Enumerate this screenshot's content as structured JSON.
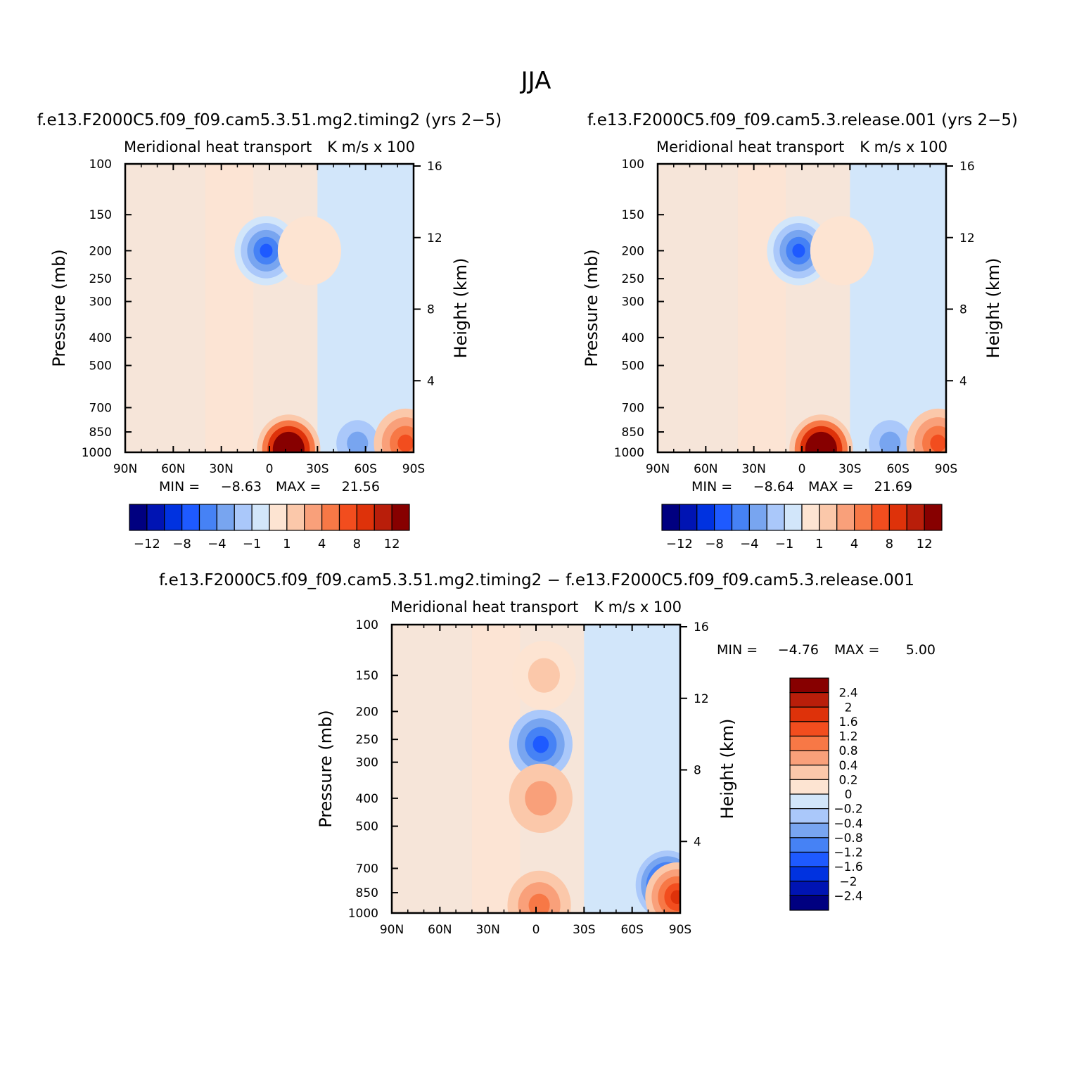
{
  "figure_title": "JJA",
  "chart_data": [
    {
      "type": "heatmap",
      "title": "f.e13.F2000C5.f09_f09.cam5.3.51.mg2.timing2 (yrs 2−5)",
      "subtitle_left": "Meridional heat transport",
      "subtitle_right": "K m/s x 100",
      "ylabel_left": "Pressure (mb)",
      "ylabel_right": "Height (km)",
      "x_ticks": [
        "90N",
        "60N",
        "30N",
        "0",
        "30S",
        "60S",
        "90S"
      ],
      "x_range": [
        90,
        -90
      ],
      "pressure_ticks": [
        100,
        150,
        200,
        250,
        300,
        400,
        500,
        700,
        850,
        1000
      ],
      "height_ticks": [
        16,
        12,
        8,
        4
      ],
      "min_label": "MIN =",
      "min_value": "−8.63",
      "max_label": "MAX =",
      "max_value": "21.56",
      "colorbar": {
        "orientation": "horizontal",
        "colors": [
          "#000080",
          "#0014b3",
          "#0032e0",
          "#1e5aff",
          "#4682f5",
          "#78a5f0",
          "#aac8fa",
          "#d2e6fa",
          "#fde4d2",
          "#fbc8aa",
          "#f9a07a",
          "#f77846",
          "#f24d1e",
          "#de320a",
          "#b91e0a",
          "#870000"
        ],
        "labels": [
          "−12",
          "−8",
          "−4",
          "−1",
          "1",
          "4",
          "8",
          "12"
        ]
      },
      "features": [
        {
          "lat": 2,
          "p": 200,
          "value": -9,
          "feature": "upper tropospheric negative core"
        },
        {
          "lat": -25,
          "p": 200,
          "value": 1.5,
          "feature": "upper positive lobe"
        },
        {
          "lat": -12,
          "p": 975,
          "value": 21.56,
          "feature": "surface maximum"
        },
        {
          "lat": -55,
          "p": 930,
          "value": -5,
          "feature": "southern low-level negative"
        },
        {
          "lat": -85,
          "p": 930,
          "value": 8,
          "feature": "antarctic low-level positive"
        }
      ]
    },
    {
      "type": "heatmap",
      "title": "f.e13.F2000C5.f09_f09.cam5.3.release.001 (yrs 2−5)",
      "subtitle_left": "Meridional heat transport",
      "subtitle_right": "K m/s x 100",
      "ylabel_left": "Pressure (mb)",
      "ylabel_right": "Height (km)",
      "x_ticks": [
        "90N",
        "60N",
        "30N",
        "0",
        "30S",
        "60S",
        "90S"
      ],
      "x_range": [
        90,
        -90
      ],
      "pressure_ticks": [
        100,
        150,
        200,
        250,
        300,
        400,
        500,
        700,
        850,
        1000
      ],
      "height_ticks": [
        16,
        12,
        8,
        4
      ],
      "min_label": "MIN =",
      "min_value": "−8.64",
      "max_label": "MAX =",
      "max_value": "21.69",
      "colorbar": {
        "orientation": "horizontal",
        "colors": [
          "#000080",
          "#0014b3",
          "#0032e0",
          "#1e5aff",
          "#4682f5",
          "#78a5f0",
          "#aac8fa",
          "#d2e6fa",
          "#fde4d2",
          "#fbc8aa",
          "#f9a07a",
          "#f77846",
          "#f24d1e",
          "#de320a",
          "#b91e0a",
          "#870000"
        ],
        "labels": [
          "−12",
          "−8",
          "−4",
          "−1",
          "1",
          "4",
          "8",
          "12"
        ]
      },
      "features": [
        {
          "lat": 2,
          "p": 200,
          "value": -9,
          "feature": "upper tropospheric negative core"
        },
        {
          "lat": -25,
          "p": 200,
          "value": 1.5,
          "feature": "upper positive lobe"
        },
        {
          "lat": -12,
          "p": 975,
          "value": 21.69,
          "feature": "surface maximum"
        },
        {
          "lat": -55,
          "p": 930,
          "value": -5,
          "feature": "southern low-level negative"
        },
        {
          "lat": -85,
          "p": 930,
          "value": 8,
          "feature": "antarctic low-level positive"
        }
      ]
    },
    {
      "type": "heatmap",
      "title": "f.e13.F2000C5.f09_f09.cam5.3.51.mg2.timing2 − f.e13.F2000C5.f09_f09.cam5.3.release.001",
      "subtitle_left": "Meridional heat transport",
      "subtitle_right": "K m/s x 100",
      "ylabel_left": "Pressure (mb)",
      "ylabel_right": "Height (km)",
      "x_ticks": [
        "90N",
        "60N",
        "30N",
        "0",
        "30S",
        "60S",
        "90S"
      ],
      "x_range": [
        90,
        -90
      ],
      "pressure_ticks": [
        100,
        150,
        200,
        250,
        300,
        400,
        500,
        700,
        850,
        1000
      ],
      "height_ticks": [
        16,
        12,
        8,
        4
      ],
      "min_label": "MIN =",
      "min_value": "−4.76",
      "max_label": "MAX =",
      "max_value": "5.00",
      "colorbar": {
        "orientation": "vertical",
        "colors": [
          "#870000",
          "#b91e0a",
          "#de320a",
          "#f24d1e",
          "#f77846",
          "#f9a07a",
          "#fbc8aa",
          "#fde4d2",
          "#d2e6fa",
          "#aac8fa",
          "#78a5f0",
          "#4682f5",
          "#1e5aff",
          "#0032e0",
          "#0014b3",
          "#000080"
        ],
        "labels": [
          "2.4",
          "2",
          "1.6",
          "1.2",
          "0.8",
          "0.4",
          "0.2",
          "0",
          "−0.2",
          "−0.4",
          "−0.8",
          "−1.2",
          "−1.6",
          "−2",
          "−2.4"
        ]
      },
      "features": [
        {
          "lat": -5,
          "p": 150,
          "value": 0.5,
          "feature": "upper positive spot"
        },
        {
          "lat": -3,
          "p": 260,
          "value": -1.6,
          "feature": "upper negative core"
        },
        {
          "lat": -3,
          "p": 400,
          "value": 0.8,
          "feature": "mid-level positive"
        },
        {
          "lat": -2,
          "p": 940,
          "value": 1.2,
          "feature": "surface positive"
        },
        {
          "lat": -82,
          "p": 800,
          "value": -2.4,
          "feature": "antarctic negative"
        },
        {
          "lat": -88,
          "p": 880,
          "value": 2,
          "feature": "antarctic positive"
        }
      ]
    }
  ]
}
